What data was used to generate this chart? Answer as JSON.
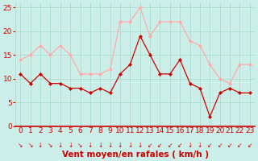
{
  "hours": [
    0,
    1,
    2,
    3,
    4,
    5,
    6,
    7,
    8,
    9,
    10,
    11,
    12,
    13,
    14,
    15,
    16,
    17,
    18,
    19,
    20,
    21,
    22,
    23
  ],
  "wind_avg": [
    11,
    9,
    11,
    9,
    9,
    8,
    8,
    7,
    8,
    7,
    11,
    13,
    19,
    15,
    11,
    11,
    14,
    9,
    8,
    2,
    7,
    8,
    7,
    7
  ],
  "wind_gust": [
    14,
    15,
    17,
    15,
    17,
    15,
    11,
    11,
    11,
    12,
    22,
    22,
    25,
    19,
    22,
    22,
    22,
    18,
    17,
    13,
    10,
    9,
    13,
    13
  ],
  "avg_color": "#cc0000",
  "gust_color": "#ffaaaa",
  "bg_color": "#cceee8",
  "grid_color": "#aaddcc",
  "xlabel": "Vent moyen/en rafales ( km/h )",
  "xlabel_color": "#cc0000",
  "ylim": [
    0,
    26
  ],
  "yticks": [
    0,
    5,
    10,
    15,
    20,
    25
  ],
  "tick_fontsize": 6.5,
  "xlabel_fontsize": 7.5
}
